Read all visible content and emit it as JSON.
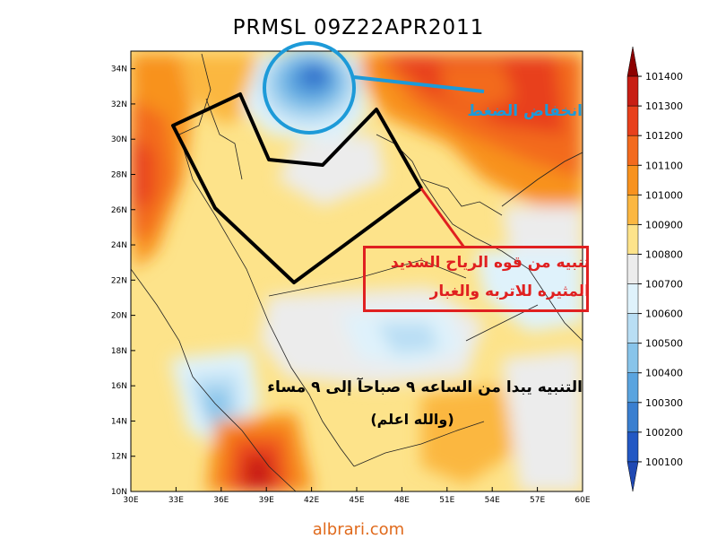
{
  "title": "PRMSL 09Z22APR2011",
  "credit": "albrari.com",
  "axes": {
    "lon_labels": [
      "30E",
      "33E",
      "36E",
      "39E",
      "42E",
      "45E",
      "48E",
      "51E",
      "54E",
      "57E",
      "60E"
    ],
    "lat_labels": [
      "34N",
      "32N",
      "30N",
      "28N",
      "26N",
      "24N",
      "22N",
      "20N",
      "18N",
      "16N",
      "14N",
      "12N",
      "10N"
    ],
    "lon_range": [
      30,
      60
    ],
    "lat_range": [
      10,
      35
    ]
  },
  "colorbar": {
    "levels": [
      "101400",
      "101300",
      "101200",
      "101100",
      "101000",
      "100900",
      "100800",
      "100700",
      "100600",
      "100500",
      "100400",
      "100300",
      "100200",
      "100100"
    ],
    "colors": [
      "#8c0000",
      "#c81e14",
      "#e8401c",
      "#f36a1e",
      "#f8921e",
      "#fbb741",
      "#fde38a",
      "#ececec",
      "#dff2fb",
      "#b9def4",
      "#88c4ea",
      "#5aa4df",
      "#3a7fd0",
      "#2358c4",
      "#1f48b3"
    ]
  },
  "annotations": {
    "low_pressure": "انخفاض الضغط",
    "wind_warning_line1": "تنبيه من قوه الرياح الشديد",
    "wind_warning_line2": "المثيره للاتربه والغبار",
    "warning_time": "التنبيه يبدا من الساعه ٩ صباحآ إلى ٩ مساء",
    "allah_knows": "(والله اعلم)"
  },
  "colors": {
    "low_marker": "#1d9ad8",
    "warning": "#e02020",
    "outline": "#000000",
    "credit": "#e06a1c"
  }
}
